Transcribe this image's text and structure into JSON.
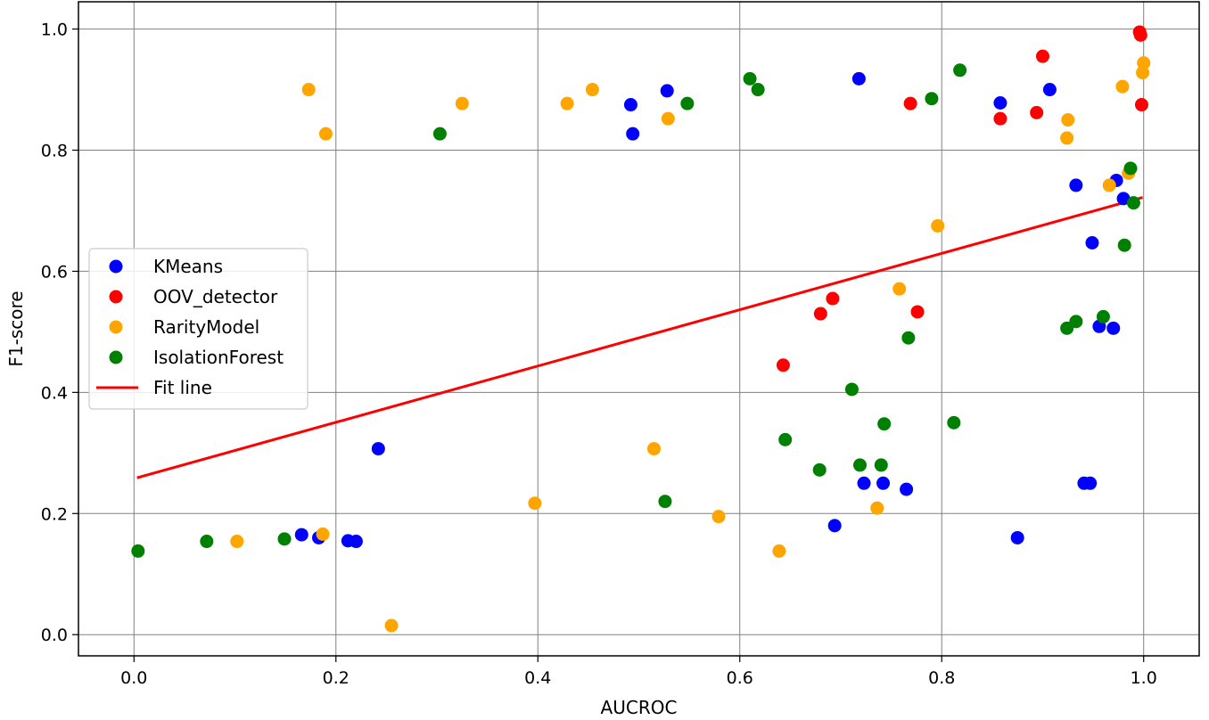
{
  "chart_data": {
    "type": "scatter",
    "title": "",
    "xlabel": "AUCROC",
    "ylabel": "F1-score",
    "xlim": [
      -0.055,
      1.055
    ],
    "ylim": [
      -0.035,
      1.045
    ],
    "xticks": [
      0.0,
      0.2,
      0.4,
      0.6,
      0.8,
      1.0
    ],
    "xtick_labels": [
      "0.0",
      "0.2",
      "0.4",
      "0.6",
      "0.8",
      "1.0"
    ],
    "yticks": [
      0.0,
      0.2,
      0.4,
      0.6,
      0.8,
      1.0
    ],
    "ytick_labels": [
      "0.0",
      "0.2",
      "0.4",
      "0.6",
      "0.8",
      "1.0"
    ],
    "grid": true,
    "legend_position": "center-left",
    "series": [
      {
        "name": "KMeans",
        "color": "#0000ff",
        "points": [
          [
            0.166,
            0.165
          ],
          [
            0.183,
            0.16
          ],
          [
            0.212,
            0.155
          ],
          [
            0.22,
            0.154
          ],
          [
            0.242,
            0.307
          ],
          [
            0.492,
            0.875
          ],
          [
            0.494,
            0.827
          ],
          [
            0.528,
            0.898
          ],
          [
            0.718,
            0.918
          ],
          [
            0.694,
            0.18
          ],
          [
            0.723,
            0.25
          ],
          [
            0.742,
            0.25
          ],
          [
            0.765,
            0.24
          ],
          [
            0.858,
            0.878
          ],
          [
            0.875,
            0.16
          ],
          [
            0.907,
            0.9
          ],
          [
            0.933,
            0.742
          ],
          [
            0.941,
            0.25
          ],
          [
            0.947,
            0.25
          ],
          [
            0.949,
            0.647
          ],
          [
            0.956,
            0.509
          ],
          [
            0.97,
            0.506
          ],
          [
            0.973,
            0.75
          ],
          [
            0.98,
            0.72
          ]
        ]
      },
      {
        "name": "OOV_detector",
        "color": "#ff0000",
        "points": [
          [
            0.643,
            0.445
          ],
          [
            0.68,
            0.53
          ],
          [
            0.692,
            0.555
          ],
          [
            0.769,
            0.877
          ],
          [
            0.776,
            0.533
          ],
          [
            0.858,
            0.852
          ],
          [
            0.894,
            0.862
          ],
          [
            0.9,
            0.955
          ],
          [
            0.996,
            0.995
          ],
          [
            0.997,
            0.99
          ],
          [
            0.998,
            0.875
          ]
        ]
      },
      {
        "name": "RarityModel",
        "color": "#ffa500",
        "points": [
          [
            0.102,
            0.154
          ],
          [
            0.173,
            0.9
          ],
          [
            0.187,
            0.166
          ],
          [
            0.19,
            0.827
          ],
          [
            0.255,
            0.015
          ],
          [
            0.325,
            0.877
          ],
          [
            0.397,
            0.217
          ],
          [
            0.429,
            0.877
          ],
          [
            0.454,
            0.9
          ],
          [
            0.515,
            0.307
          ],
          [
            0.529,
            0.852
          ],
          [
            0.579,
            0.195
          ],
          [
            0.639,
            0.138
          ],
          [
            0.736,
            0.209
          ],
          [
            0.758,
            0.571
          ],
          [
            0.796,
            0.675
          ],
          [
            0.924,
            0.82
          ],
          [
            0.925,
            0.85
          ],
          [
            0.966,
            0.742
          ],
          [
            0.979,
            0.905
          ],
          [
            0.985,
            0.762
          ],
          [
            0.999,
            0.928
          ],
          [
            1.0,
            0.944
          ]
        ]
      },
      {
        "name": "IsolationForest",
        "color": "#008000",
        "points": [
          [
            0.004,
            0.138
          ],
          [
            0.072,
            0.154
          ],
          [
            0.149,
            0.158
          ],
          [
            0.303,
            0.827
          ],
          [
            0.526,
            0.22
          ],
          [
            0.548,
            0.877
          ],
          [
            0.61,
            0.918
          ],
          [
            0.618,
            0.9
          ],
          [
            0.645,
            0.322
          ],
          [
            0.679,
            0.272
          ],
          [
            0.711,
            0.405
          ],
          [
            0.719,
            0.28
          ],
          [
            0.74,
            0.28
          ],
          [
            0.743,
            0.348
          ],
          [
            0.767,
            0.49
          ],
          [
            0.79,
            0.885
          ],
          [
            0.812,
            0.35
          ],
          [
            0.818,
            0.932
          ],
          [
            0.924,
            0.506
          ],
          [
            0.933,
            0.517
          ],
          [
            0.96,
            0.525
          ],
          [
            0.981,
            0.643
          ],
          [
            0.987,
            0.77
          ],
          [
            0.99,
            0.713
          ]
        ]
      }
    ],
    "fit_line": {
      "name": "Fit line",
      "color": "#ff0000",
      "x": [
        0.003,
        0.999
      ],
      "y": [
        0.259,
        0.722
      ]
    }
  }
}
